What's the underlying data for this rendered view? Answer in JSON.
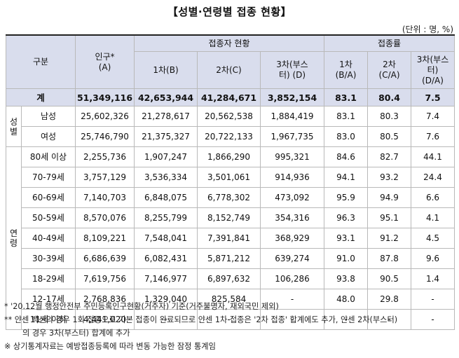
{
  "title": "【성별·연령별 접종 현황】",
  "unit": "(단위 : 명, %)",
  "header": {
    "category": "구분",
    "population": "인구*\n(A)",
    "vaccinated": "접종자 현황",
    "rate": "접종률",
    "first": "1차(B)",
    "second": "2차(C)",
    "third": "3차(부스\n터) (D)",
    "rate_first": "1차\n(B/A)",
    "rate_second": "2차\n(C/A)",
    "rate_third": "3차(부스\n터)\n(D/A)"
  },
  "total": {
    "label": "계",
    "values": [
      "51,349,116",
      "42,653,944",
      "41,284,671",
      "3,852,154",
      "83.1",
      "80.4",
      "7.5"
    ]
  },
  "groups": [
    {
      "label": "성별",
      "rows": [
        {
          "label": "남성",
          "values": [
            "25,602,326",
            "21,278,617",
            "20,562,538",
            "1,884,419",
            "83.1",
            "80.3",
            "7.4"
          ]
        },
        {
          "label": "여성",
          "values": [
            "25,746,790",
            "21,375,327",
            "20,722,133",
            "1,967,735",
            "83.0",
            "80.5",
            "7.6"
          ]
        }
      ]
    },
    {
      "label": "연령",
      "rows": [
        {
          "label": "80세 이상",
          "values": [
            "2,255,736",
            "1,907,247",
            "1,866,290",
            "995,321",
            "84.6",
            "82.7",
            "44.1"
          ]
        },
        {
          "label": "70-79세",
          "values": [
            "3,757,129",
            "3,536,334",
            "3,501,061",
            "914,936",
            "94.1",
            "93.2",
            "24.4"
          ]
        },
        {
          "label": "60-69세",
          "values": [
            "7,140,703",
            "6,848,075",
            "6,778,302",
            "473,092",
            "95.9",
            "94.9",
            "6.6"
          ]
        },
        {
          "label": "50-59세",
          "values": [
            "8,570,076",
            "8,255,799",
            "8,152,749",
            "354,316",
            "96.3",
            "95.1",
            "4.1"
          ]
        },
        {
          "label": "40-49세",
          "values": [
            "8,109,221",
            "7,548,041",
            "7,391,841",
            "368,929",
            "93.1",
            "91.2",
            "4.5"
          ]
        },
        {
          "label": "30-39세",
          "values": [
            "6,686,639",
            "6,082,431",
            "5,871,212",
            "639,274",
            "91.0",
            "87.8",
            "9.6"
          ]
        },
        {
          "label": "18-29세",
          "values": [
            "7,619,756",
            "7,146,977",
            "6,897,632",
            "106,286",
            "93.8",
            "90.5",
            "1.4"
          ]
        },
        {
          "label": "12-17세",
          "values": [
            "2,768,836",
            "1,329,040",
            "825,584",
            "-",
            "48.0",
            "29.8",
            "-"
          ]
        },
        {
          "label": "11세 이하",
          "values": [
            "4,441,020",
            "-",
            "-",
            "-",
            "-",
            "-",
            "-"
          ]
        }
      ]
    }
  ],
  "notes": [
    "* '20.12월 행정안전부 주민등록인구현황(거주자) 기준(거주불명자, 재외국민 제외)",
    "** 얀센 백신의 경우 1회 접종으로 기본 접종이 완료되므로 얀센 1차 접종은 '2차 접종' 합계에도 추가, 얀센 2차(부스터)",
    "의 경우 3차(부스터) 합계에 추가",
    "※ 상기통계자료는 예방접종등록에 따라 변동 가능한 잠정 통계임"
  ]
}
